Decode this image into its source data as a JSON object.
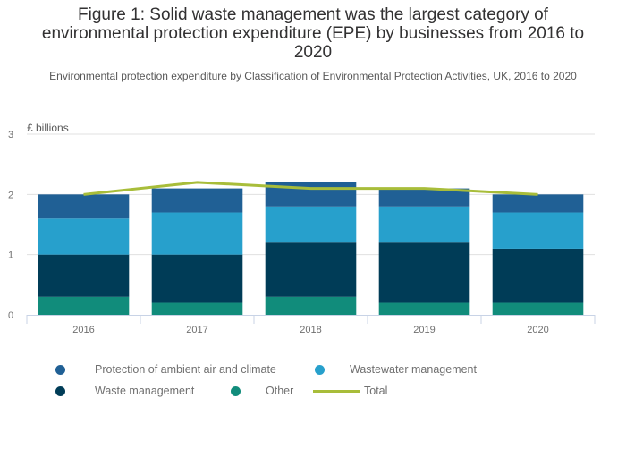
{
  "chart_data": {
    "type": "bar",
    "stacked": true,
    "title": "Figure 1: Solid waste management was the largest category of environmental protection expenditure (EPE) by businesses from 2016 to 2020",
    "title_lines": [
      "Figure 1: Solid waste management was the largest category of",
      "environmental protection expenditure (EPE) by businesses from 2016 to",
      "2020"
    ],
    "subtitle": "Environmental protection expenditure by Classification of Environmental Protection Activities, UK, 2016 to 2020",
    "xlabel": "",
    "ylabel": "£ billions",
    "ylim": [
      0,
      3
    ],
    "yticks": [
      "0",
      "1",
      "2",
      "3"
    ],
    "grid": true,
    "legend_position": "bottom",
    "categories": [
      "2016",
      "2017",
      "2018",
      "2019",
      "2020"
    ],
    "series": [
      {
        "name": "Other",
        "color": "#118c7b",
        "values": [
          0.3,
          0.2,
          0.3,
          0.2,
          0.2
        ]
      },
      {
        "name": "Waste management",
        "color": "#003c57",
        "values": [
          0.7,
          0.8,
          0.9,
          1.0,
          0.9
        ]
      },
      {
        "name": "Wastewater management",
        "color": "#27a0cc",
        "values": [
          0.6,
          0.7,
          0.6,
          0.6,
          0.6
        ]
      },
      {
        "name": "Protection of ambient air and climate",
        "color": "#206095",
        "values": [
          0.4,
          0.4,
          0.4,
          0.3,
          0.3
        ]
      }
    ],
    "line_series": {
      "name": "Total",
      "color": "#a8bd3a",
      "values": [
        2.0,
        2.2,
        2.1,
        2.1,
        2.0
      ]
    }
  },
  "legend": [
    {
      "label": "Protection of ambient air and climate",
      "color": "#206095",
      "kind": "dot"
    },
    {
      "label": "Wastewater management",
      "color": "#27a0cc",
      "kind": "dot"
    },
    {
      "label": "Waste management",
      "color": "#003c57",
      "kind": "dot"
    },
    {
      "label": "Other",
      "color": "#118c7b",
      "kind": "dot"
    },
    {
      "label": "Total",
      "color": "#a8bd3a",
      "kind": "line"
    }
  ]
}
